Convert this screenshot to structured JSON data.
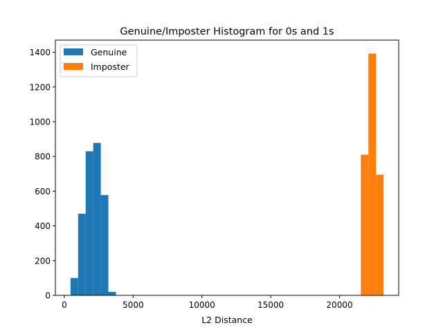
{
  "chart_data": {
    "type": "bar",
    "title": "Genuine/Imposter Histogram for 0s and 1s",
    "xlabel": "L2 Distance",
    "ylabel": "",
    "xlim": [
      -650,
      24300
    ],
    "ylim": [
      0,
      1470
    ],
    "xticks": [
      {
        "value": 0,
        "label": "0"
      },
      {
        "value": 5000,
        "label": "5000"
      },
      {
        "value": 10000,
        "label": "10000"
      },
      {
        "value": 15000,
        "label": "15000"
      },
      {
        "value": 20000,
        "label": "20000"
      }
    ],
    "yticks": [
      {
        "value": 0,
        "label": "0"
      },
      {
        "value": 200,
        "label": "200"
      },
      {
        "value": 400,
        "label": "400"
      },
      {
        "value": 600,
        "label": "600"
      },
      {
        "value": 800,
        "label": "800"
      },
      {
        "value": 1000,
        "label": "1000"
      },
      {
        "value": 1200,
        "label": "1200"
      },
      {
        "value": 1400,
        "label": "1400"
      }
    ],
    "legend_position": "upper-left",
    "grid": false,
    "series": [
      {
        "name": "Genuine",
        "color": "#1f77b4",
        "bins": [
          {
            "x0": 450,
            "x1": 1000,
            "count": 100
          },
          {
            "x0": 1000,
            "x1": 1550,
            "count": 470
          },
          {
            "x0": 1550,
            "x1": 2100,
            "count": 830
          },
          {
            "x0": 2100,
            "x1": 2650,
            "count": 878
          },
          {
            "x0": 2650,
            "x1": 3200,
            "count": 578
          },
          {
            "x0": 3200,
            "x1": 3750,
            "count": 20
          }
        ]
      },
      {
        "name": "Imposter",
        "color": "#ff7f0e",
        "bins": [
          {
            "x0": 21550,
            "x1": 22100,
            "count": 810
          },
          {
            "x0": 22100,
            "x1": 22650,
            "count": 1393
          },
          {
            "x0": 22650,
            "x1": 23200,
            "count": 695
          }
        ]
      }
    ]
  }
}
